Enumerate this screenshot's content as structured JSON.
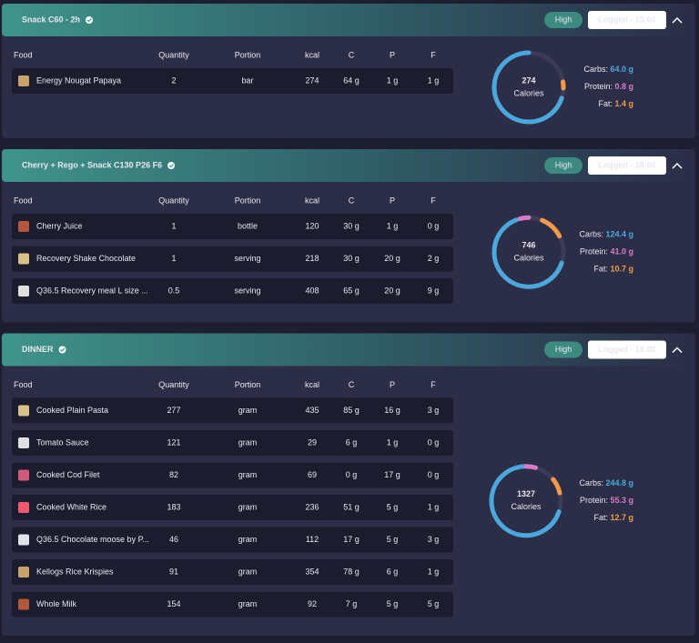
{
  "columns": [
    "Food",
    "Quantity",
    "Portion",
    "kcal",
    "C",
    "P",
    "F"
  ],
  "meals": [
    {
      "title": "Snack C60 - 2h",
      "badge": "High",
      "logged": "Logged - 15:00",
      "rows": [
        [
          "Energy Nougat Papaya",
          "2",
          "bar",
          "274",
          "64 g",
          "1 g",
          "1 g"
        ]
      ],
      "calories": "274",
      "calories_label": "Calories",
      "macros": [
        {
          "label": "Carbs:",
          "value": "64.0 g"
        },
        {
          "label": "Protein:",
          "value": "0.8 g"
        },
        {
          "label": "Fat:",
          "value": "1.4 g"
        }
      ]
    },
    {
      "title": "Cherry + Rego + Snack C130 P26 F6",
      "badge": "High",
      "logged": "Logged - 18:00",
      "rows": [
        [
          "Cherry Juice",
          "1",
          "bottle",
          "120",
          "30 g",
          "1 g",
          "0 g"
        ],
        [
          "Recovery Shake Chocolate",
          "1",
          "serving",
          "218",
          "30 g",
          "20 g",
          "2 g"
        ],
        [
          "Q36.5 Recovery meal L size ...",
          "0.5",
          "serving",
          "408",
          "65 g",
          "20 g",
          "9 g"
        ]
      ],
      "calories": "746",
      "calories_label": "Calories",
      "macros": [
        {
          "label": "Carbs:",
          "value": "124.4 g"
        },
        {
          "label": "Protein:",
          "value": "41.0 g"
        },
        {
          "label": "Fat:",
          "value": "10.7 g"
        }
      ]
    },
    {
      "title": "DINNER",
      "badge": "High",
      "logged": "Logged - 19:00",
      "rows": [
        [
          "Cooked Plain Pasta",
          "277",
          "gram",
          "435",
          "85 g",
          "16 g",
          "3 g"
        ],
        [
          "Tomato Sauce",
          "121",
          "gram",
          "29",
          "6 g",
          "1 g",
          "0 g"
        ],
        [
          "Cooked Cod Filet",
          "82",
          "gram",
          "69",
          "0 g",
          "17 g",
          "0 g"
        ],
        [
          "Cooked White Rice",
          "183",
          "gram",
          "236",
          "51 g",
          "5 g",
          "1 g"
        ],
        [
          "Q36.5 Chocolate moose by P...",
          "46",
          "gram",
          "112",
          "17 g",
          "5 g",
          "3 g"
        ],
        [
          "Kellogs Rice Krispies",
          "91",
          "gram",
          "354",
          "78 g",
          "6 g",
          "1 g"
        ],
        [
          "Whole Milk",
          "154",
          "gram",
          "92",
          "7 g",
          "5 g",
          "5 g"
        ]
      ],
      "calories": "1327",
      "calories_label": "Calories",
      "macros": [
        {
          "label": "Carbs:",
          "value": "244.8 g"
        },
        {
          "label": "Protein:",
          "value": "55.3 g"
        },
        {
          "label": "Fat:",
          "value": "12.7 g"
        }
      ]
    }
  ]
}
